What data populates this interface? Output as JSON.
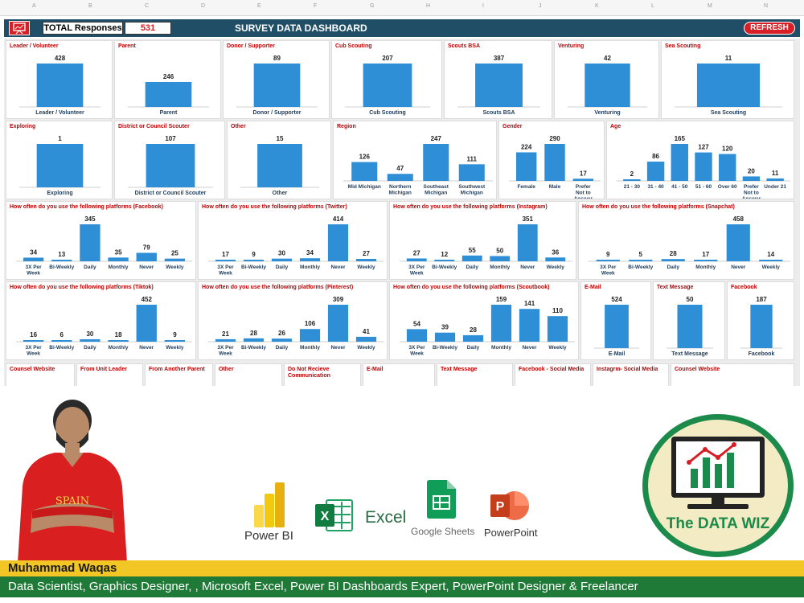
{
  "header": {
    "total_label": "TOTAL Responses",
    "total_value": "531",
    "title": "SURVEY DATA DASHBOARD",
    "refresh_label": "REFRESH"
  },
  "colors": {
    "bar": "#2e8fd7",
    "title": "#c00000",
    "header_bg": "#1f4e66",
    "accent": "#d81f26"
  },
  "panels": [
    {
      "title": "Leader / Volunteer",
      "categories": [
        "Leader / Volunteer"
      ],
      "values": [
        428
      ],
      "max": 428
    },
    {
      "title": "Parent",
      "categories": [
        "Parent"
      ],
      "values": [
        246
      ],
      "max": 428
    },
    {
      "title": "Donor / Supporter",
      "categories": [
        "Donor / Supporter"
      ],
      "values": [
        89
      ],
      "max": 89
    },
    {
      "title": "Cub Scouting",
      "categories": [
        "Cub Scouting"
      ],
      "values": [
        207
      ],
      "max": 207
    },
    {
      "title": "Scouts BSA",
      "categories": [
        "Scouts BSA"
      ],
      "values": [
        387
      ],
      "max": 387
    },
    {
      "title": "Venturing",
      "categories": [
        "Venturing"
      ],
      "values": [
        42
      ],
      "max": 42
    },
    {
      "title": "Sea Scouting",
      "categories": [
        "Sea Scouting"
      ],
      "values": [
        11
      ],
      "max": 11
    },
    {
      "title": "Exploring",
      "categories": [
        "Exploring"
      ],
      "values": [
        1
      ],
      "max": 1
    },
    {
      "title": "District or Council Scouter",
      "categories": [
        "District or Council Scouter"
      ],
      "values": [
        107
      ],
      "max": 107
    },
    {
      "title": "Other",
      "categories": [
        "Other"
      ],
      "values": [
        15
      ],
      "max": 15
    },
    {
      "title": "Region",
      "categories": [
        "Mid Michigan",
        "Northern Michigan",
        "Southeast Michigan",
        "Southwest Michigan"
      ],
      "values": [
        126,
        47,
        247,
        111
      ],
      "max": 247
    },
    {
      "title": "Gender",
      "categories": [
        "Female",
        "Male",
        "Prefer Not to Answer"
      ],
      "values": [
        224,
        290,
        17
      ],
      "max": 290
    },
    {
      "title": "Age",
      "categories": [
        "21 - 30",
        "31 - 40",
        "41 - 50",
        "51 - 60",
        "Over 60",
        "Prefer Not to Answer",
        "Under 21"
      ],
      "values": [
        2,
        86,
        165,
        127,
        120,
        20,
        11
      ],
      "max": 165
    },
    {
      "title": "How often do you use the following platforms (Facebook)",
      "categories": [
        "3X Per Week",
        "Bi-Weekly",
        "Daily",
        "Monthly",
        "Never",
        "Weekly"
      ],
      "values": [
        34,
        13,
        345,
        35,
        79,
        25
      ],
      "max": 345
    },
    {
      "title": "How often do you use the following platforms (Twitter)",
      "categories": [
        "3X Per Week",
        "Bi-Weekly",
        "Daily",
        "Monthly",
        "Never",
        "Weekly"
      ],
      "values": [
        17,
        9,
        30,
        34,
        414,
        27
      ],
      "max": 414
    },
    {
      "title": "How often do you use the following platforms (Instagram)",
      "categories": [
        "3X Per Week",
        "Bi-Weekly",
        "Daily",
        "Monthly",
        "Never",
        "Weekly"
      ],
      "values": [
        27,
        12,
        55,
        50,
        351,
        36
      ],
      "max": 351
    },
    {
      "title": "How often do you use the following platforms (Snapchat)",
      "categories": [
        "3X Per Week",
        "Bi-Weekly",
        "Daily",
        "Monthly",
        "Never",
        "Weekly"
      ],
      "values": [
        9,
        5,
        28,
        17,
        458,
        14
      ],
      "max": 458
    },
    {
      "title": "How often do you use the following platforms (Tiktok)",
      "categories": [
        "3X Per Week",
        "Bi-Weekly",
        "Daily",
        "Monthly",
        "Never",
        "Weekly"
      ],
      "values": [
        16,
        6,
        30,
        18,
        452,
        9
      ],
      "max": 452
    },
    {
      "title": "How often do you use the following platforms (Pinterest)",
      "categories": [
        "3X Per Week",
        "Bi-Weekly",
        "Daily",
        "Monthly",
        "Never",
        "Weekly"
      ],
      "values": [
        21,
        28,
        26,
        106,
        309,
        41
      ],
      "max": 309
    },
    {
      "title": "How often do you use the following platforms (Scoutbook)",
      "categories": [
        "3X Per Week",
        "Bi-Weekly",
        "Daily",
        "Monthly",
        "Never",
        "Weekly"
      ],
      "values": [
        54,
        39,
        28,
        159,
        141,
        110
      ],
      "max": 159
    },
    {
      "title": "E-Mail",
      "categories": [
        "E-Mail"
      ],
      "values": [
        524
      ],
      "max": 524
    },
    {
      "title": "Text Message",
      "categories": [
        "Text Message"
      ],
      "values": [
        50
      ],
      "max": 50
    },
    {
      "title": "Facebook",
      "categories": [
        "Facebook"
      ],
      "values": [
        187
      ],
      "max": 187
    },
    {
      "title": "Counsel Website",
      "categories": [],
      "values": []
    },
    {
      "title": "From Unit Leader",
      "categories": [],
      "values": []
    },
    {
      "title": "From Another Parent",
      "categories": [],
      "values": []
    },
    {
      "title": "Other",
      "categories": [],
      "values": []
    },
    {
      "title": "Do Not Recieve Communication",
      "categories": [],
      "values": []
    },
    {
      "title": "E-Mail",
      "categories": [],
      "values": []
    },
    {
      "title": "Text Message",
      "categories": [],
      "values": []
    },
    {
      "title": "Facebook - Social Media",
      "categories": [],
      "values": []
    },
    {
      "title": "Instagrm- Social Media",
      "categories": [],
      "values": []
    },
    {
      "title": "Counsel Website",
      "categories": [],
      "values": []
    }
  ],
  "apps": [
    {
      "name": "Power BI",
      "icon": "powerbi-icon"
    },
    {
      "name": "Excel",
      "icon": "excel-icon"
    },
    {
      "name": "Google Sheets",
      "icon": "google-sheets-icon"
    },
    {
      "name": "PowerPoint",
      "icon": "powerpoint-icon"
    }
  ],
  "brand": {
    "name": "The DATA WIZ"
  },
  "person": {
    "name": "Muhammad Waqas",
    "shirt_text": "SPAIN"
  },
  "roles": "Data Scientist, Graphics Designer, , Microsoft Excel, Power BI Dashboards Expert, PowerPoint Designer & Freelancer"
}
